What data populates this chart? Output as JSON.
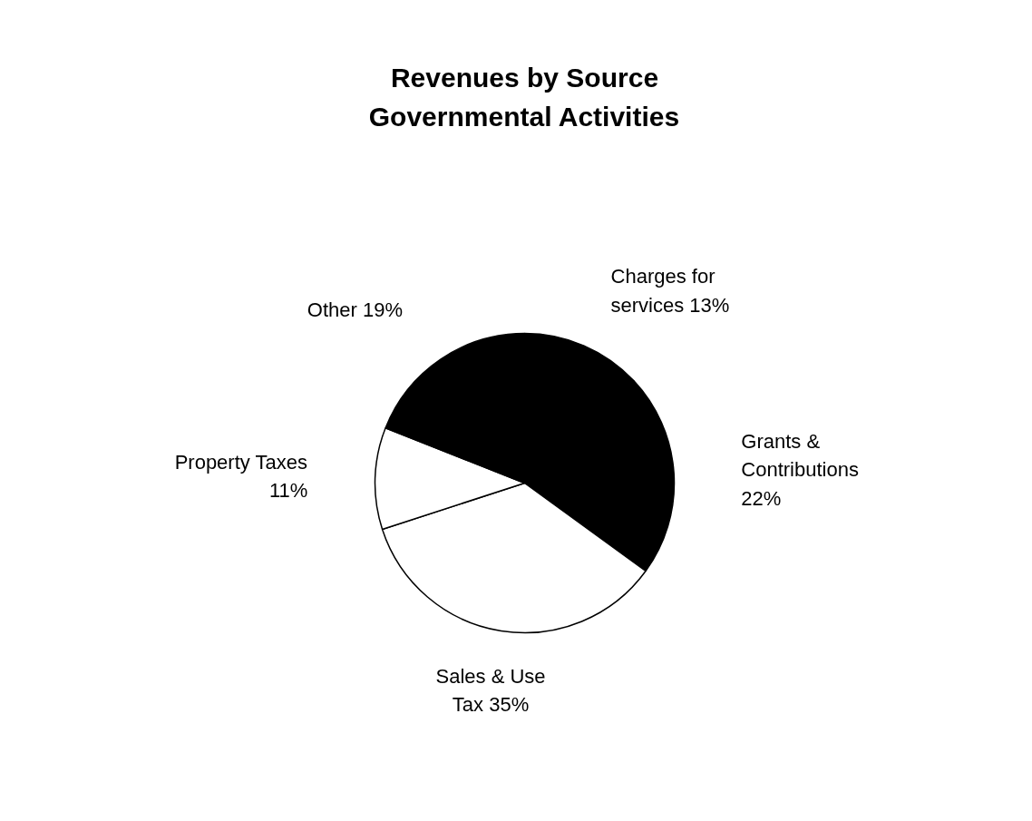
{
  "chart_data": {
    "type": "pie",
    "title": "Revenues by Source\nGovernmental Activities",
    "categories": [
      "Charges for\nservices",
      "Grants &\nContributions",
      "Sales & Use\nTax",
      "Property Taxes",
      "Other"
    ],
    "values": [
      13,
      22,
      35,
      11,
      19
    ],
    "value_labels": [
      "13%",
      "22%",
      "35%",
      "11%",
      "19%"
    ],
    "colors": [
      "#000000",
      "#000000",
      "#ffffff",
      "#ffffff",
      "#000000"
    ]
  }
}
